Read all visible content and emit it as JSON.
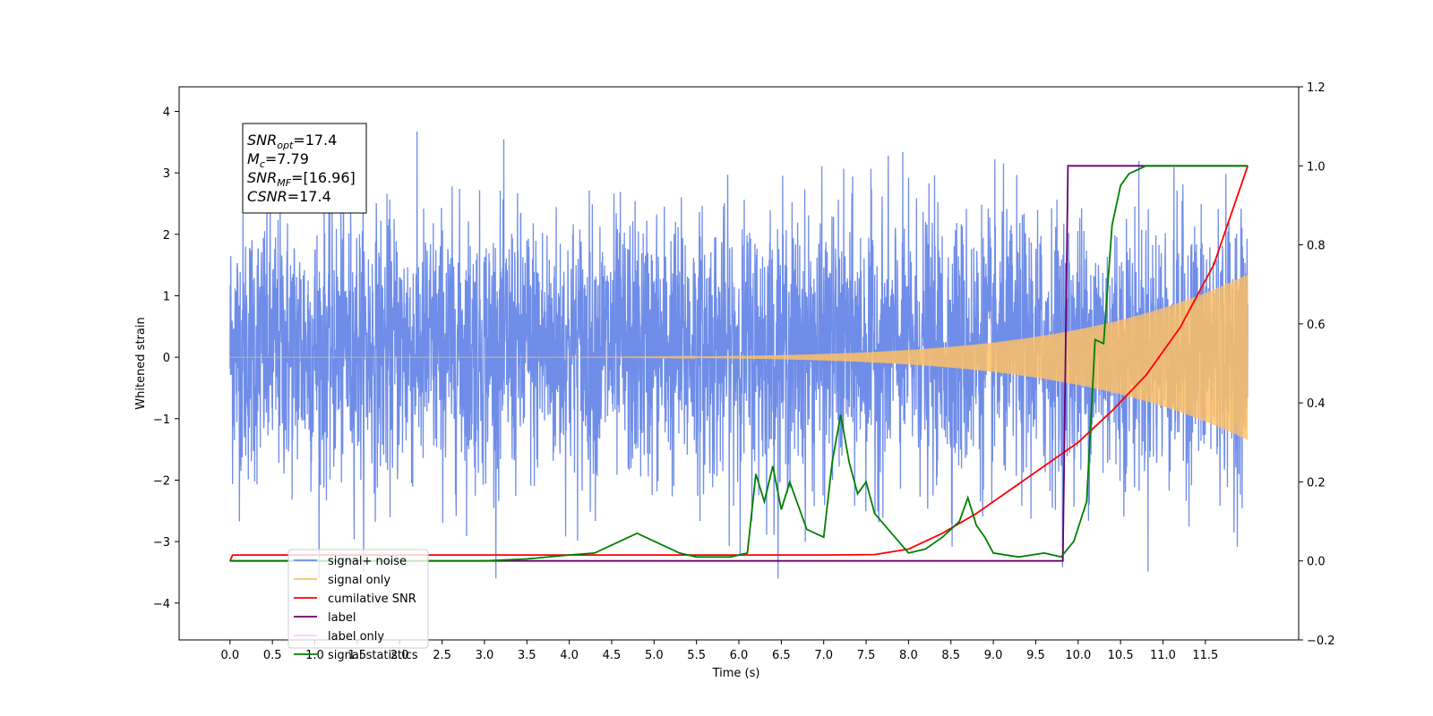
{
  "chart_data": {
    "type": "line",
    "title": "",
    "xlabel": "Time (s)",
    "ylabel": "Whitened strain",
    "xlim": [
      -0.6,
      12.6
    ],
    "ylim": [
      -4.6,
      4.4
    ],
    "y2lim": [
      -0.2,
      1.2
    ],
    "grid": false,
    "legend_position": "lower-left",
    "x_ticks": [
      "0.0",
      "0.5",
      "1.0",
      "1.5",
      "2.0",
      "2.5",
      "3.0",
      "3.5",
      "4.0",
      "4.5",
      "5.0",
      "5.5",
      "6.0",
      "6.5",
      "7.0",
      "7.5",
      "8.0",
      "8.5",
      "9.0",
      "9.5",
      "10.0",
      "10.5",
      "11.0",
      "11.5"
    ],
    "y_ticks": [
      "4",
      "3",
      "2",
      "1",
      "0",
      "−1",
      "−2",
      "−3",
      "−4"
    ],
    "y2_ticks": [
      "1.2",
      "1.0",
      "0.8",
      "0.6",
      "0.4",
      "0.2",
      "0.0",
      "−0.2"
    ],
    "annotation": {
      "lines": [
        {
          "main": "SNR",
          "sub": "opt",
          "rest": "=17.4"
        },
        {
          "main": "M",
          "sub": "c",
          "rest": "=7.79"
        },
        {
          "main": "SNR",
          "sub": "MF",
          "rest": "=[16.96]"
        },
        {
          "main": "CSNR",
          "sub": "",
          "rest": "=17.4"
        }
      ]
    },
    "series": [
      {
        "name": "signal+ noise",
        "color": "#6f8de8",
        "axis": "left",
        "kind": "noise",
        "t_start": 0.0,
        "t_end": 12.0,
        "noise_band": [
          -2.0,
          2.3
        ],
        "peaks": [
          -3.6,
          4.0
        ]
      },
      {
        "name": "signal only",
        "color": "#ffc166",
        "axis": "left",
        "kind": "chirp",
        "t_start": 0.0,
        "t_end": 12.0,
        "amplitude_start": 0.0,
        "amplitude_end": 1.35
      },
      {
        "name": "cumilative SNR",
        "color": "#ff0000",
        "axis": "right",
        "x": [
          0.0,
          0.03,
          7.0,
          7.6,
          8.0,
          8.4,
          8.8,
          9.2,
          9.6,
          10.0,
          10.4,
          10.8,
          11.2,
          11.6,
          12.0
        ],
        "y": [
          0.0,
          0.015,
          0.015,
          0.016,
          0.03,
          0.07,
          0.12,
          0.18,
          0.24,
          0.3,
          0.38,
          0.47,
          0.59,
          0.75,
          1.0
        ]
      },
      {
        "name": "label",
        "color": "#6b006b",
        "axis": "right",
        "x": [
          0.0,
          9.82,
          9.88,
          12.0
        ],
        "y": [
          0.0,
          0.0,
          1.0,
          1.0
        ]
      },
      {
        "name": "label only",
        "color": "#ffc8ff",
        "axis": "right",
        "x": [],
        "y": []
      },
      {
        "name": "signal statistics",
        "color": "#008000",
        "axis": "right",
        "x": [
          0.0,
          3.0,
          3.5,
          4.0,
          4.3,
          4.5,
          4.8,
          5.0,
          5.3,
          5.5,
          5.9,
          6.1,
          6.2,
          6.3,
          6.4,
          6.5,
          6.6,
          6.8,
          7.0,
          7.1,
          7.2,
          7.3,
          7.4,
          7.5,
          7.6,
          7.8,
          8.0,
          8.2,
          8.4,
          8.6,
          8.7,
          8.8,
          8.9,
          9.0,
          9.3,
          9.6,
          9.8,
          9.95,
          10.1,
          10.2,
          10.3,
          10.4,
          10.5,
          10.6,
          10.8,
          11.0,
          12.0
        ],
        "y": [
          0.0,
          0.0,
          0.005,
          0.015,
          0.02,
          0.04,
          0.07,
          0.05,
          0.02,
          0.01,
          0.01,
          0.02,
          0.22,
          0.15,
          0.24,
          0.13,
          0.2,
          0.08,
          0.06,
          0.25,
          0.37,
          0.25,
          0.17,
          0.2,
          0.12,
          0.07,
          0.02,
          0.03,
          0.06,
          0.1,
          0.16,
          0.09,
          0.06,
          0.02,
          0.01,
          0.02,
          0.01,
          0.05,
          0.15,
          0.56,
          0.55,
          0.85,
          0.95,
          0.98,
          1.0,
          1.0,
          1.0
        ]
      }
    ]
  }
}
